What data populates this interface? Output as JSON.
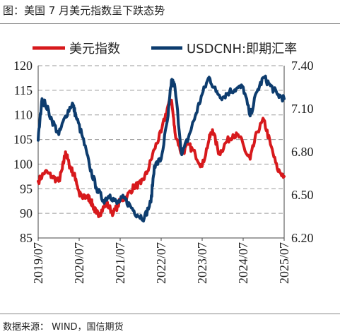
{
  "title": "图：美国 7 月美元指数呈下跌态势",
  "source": "数据来源： WIND，国信期货",
  "chart_data": {
    "type": "line",
    "title": "图：美国 7 月美元指数呈下跌态势",
    "x_tick_labels": [
      "2019/07",
      "2020/07",
      "2021/07",
      "2022/07",
      "2023/07",
      "2024/07",
      "2025/07"
    ],
    "y_left": {
      "min": 85,
      "max": 120,
      "ticks": [
        85,
        90,
        95,
        100,
        105,
        110,
        115,
        120
      ]
    },
    "y_right": {
      "min": 6.2,
      "max": 7.4,
      "ticks": [
        "6.20",
        "6.50",
        "6.80",
        "7.10",
        "7.40"
      ]
    },
    "grid": "horizontal dashed",
    "legend_position": "top",
    "series": [
      {
        "name": "美元指数",
        "axis": "left",
        "color": "#d7191c",
        "x": [
          "2019-07",
          "2019-09",
          "2019-11",
          "2020-01",
          "2020-02",
          "2020-03",
          "2020-04",
          "2020-05",
          "2020-06",
          "2020-07",
          "2020-08",
          "2020-09",
          "2020-10",
          "2020-11",
          "2020-12",
          "2021-01",
          "2021-03",
          "2021-05",
          "2021-07",
          "2021-09",
          "2021-11",
          "2022-01",
          "2022-03",
          "2022-05",
          "2022-07",
          "2022-09",
          "2022-10",
          "2022-11",
          "2023-01",
          "2023-03",
          "2023-05",
          "2023-07",
          "2023-09",
          "2023-10",
          "2023-12",
          "2024-02",
          "2024-04",
          "2024-06",
          "2024-08",
          "2024-09",
          "2024-11",
          "2025-01",
          "2025-03",
          "2025-05",
          "2025-07"
        ],
        "values": [
          96.5,
          98.5,
          97.5,
          96.5,
          99,
          102.5,
          100,
          98.5,
          97,
          94,
          93,
          93.5,
          93,
          91.5,
          90,
          90,
          92,
          90,
          92.5,
          93.5,
          95.5,
          96,
          98.5,
          103,
          106.5,
          112,
          113,
          106.5,
          102,
          104,
          102,
          99.5,
          105,
          107,
          102,
          104.5,
          106,
          105.5,
          102,
          101,
          106.5,
          109,
          104,
          99,
          97.5
        ]
      },
      {
        "name": "USDCNH:即期汇率",
        "axis": "right",
        "color": "#0d3c6e",
        "x": [
          "2019-07",
          "2019-08",
          "2019-09",
          "2019-11",
          "2020-01",
          "2020-03",
          "2020-05",
          "2020-06",
          "2020-08",
          "2020-10",
          "2020-12",
          "2021-02",
          "2021-04",
          "2021-06",
          "2021-08",
          "2021-10",
          "2021-12",
          "2022-02",
          "2022-04",
          "2022-05",
          "2022-07",
          "2022-09",
          "2022-10",
          "2022-11",
          "2023-01",
          "2023-03",
          "2023-05",
          "2023-07",
          "2023-09",
          "2023-11",
          "2024-01",
          "2024-03",
          "2024-05",
          "2024-07",
          "2024-09",
          "2024-11",
          "2025-01",
          "2025-03",
          "2025-05",
          "2025-07"
        ],
        "values": [
          6.88,
          7.15,
          7.14,
          7.02,
          6.92,
          7.05,
          7.14,
          7.05,
          6.9,
          6.7,
          6.55,
          6.46,
          6.5,
          6.44,
          6.48,
          6.42,
          6.36,
          6.34,
          6.45,
          6.7,
          6.75,
          7.05,
          7.3,
          7.25,
          6.78,
          6.9,
          7.05,
          7.2,
          7.32,
          7.22,
          7.18,
          7.22,
          7.24,
          7.25,
          7.05,
          7.22,
          7.32,
          7.26,
          7.2,
          7.17
        ]
      }
    ]
  }
}
